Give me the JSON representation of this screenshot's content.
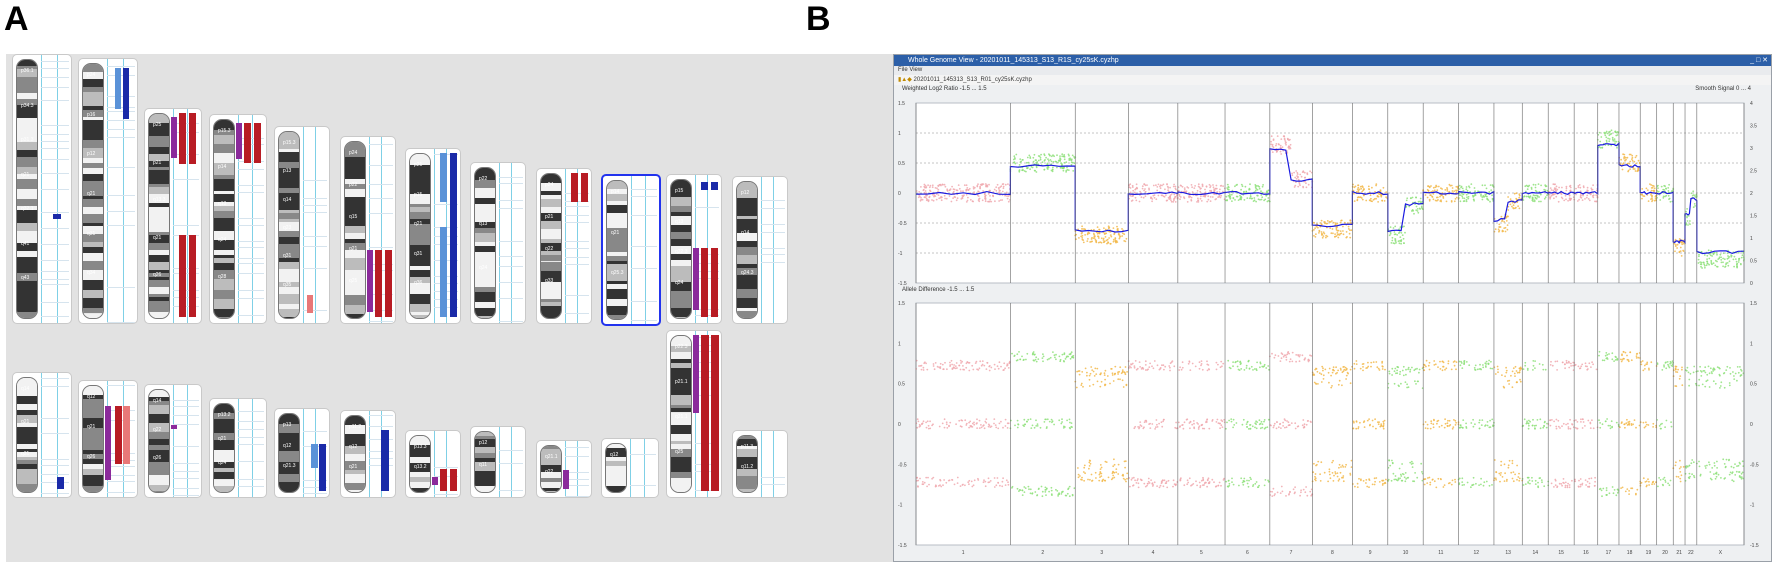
{
  "panel_a": {
    "letter": "A",
    "chromosomes_top": [
      {
        "bands": [
          "p36.1",
          "p34.3",
          "p31.3",
          "q21",
          "q32.1",
          "q41",
          "q43"
        ]
      },
      {
        "bands": [
          "p24",
          "p16",
          "p12",
          "q21",
          "q31",
          "q34"
        ]
      },
      {
        "bands": [
          "p25",
          "p21",
          "q13.3",
          "q21",
          "q26"
        ]
      },
      {
        "bands": [
          "p15.3",
          "p14",
          "q13",
          "q24",
          "q28"
        ]
      },
      {
        "bands": [
          "p15.3",
          "p13",
          "q14",
          "q23",
          "q31",
          "q35"
        ]
      },
      {
        "bands": [
          "p24",
          "p22",
          "q15",
          "q21",
          "q25"
        ]
      },
      {
        "bands": [
          "p21",
          "p15",
          "q21",
          "q31",
          "q36"
        ]
      },
      {
        "bands": [
          "p22",
          "q13",
          "q24"
        ]
      },
      {
        "bands": [
          "p24",
          "p21",
          "q22",
          "q33"
        ]
      },
      {
        "bands": [
          "p14",
          "q21",
          "q25.3"
        ]
      },
      {
        "bands": [
          "p15",
          "q13",
          "q22.3",
          "q24"
        ]
      },
      {
        "bands": [
          "p12",
          "q14",
          "q24.3"
        ]
      }
    ],
    "chromosomes_bottom": [
      {
        "bands": [
          "q14",
          "q21",
          "q31"
        ]
      },
      {
        "bands": [
          "q12",
          "q21",
          "q26"
        ]
      },
      {
        "bands": [
          "q14",
          "q22",
          "q26"
        ]
      },
      {
        "bands": [
          "p13.2",
          "q21",
          "q24"
        ]
      },
      {
        "bands": [
          "p13",
          "q12",
          "q21.3"
        ]
      },
      {
        "bands": [
          "p11.2",
          "q12",
          "q21"
        ]
      },
      {
        "bands": [
          "p13.3",
          "q13.2"
        ]
      },
      {
        "bands": [
          "p12",
          "q11"
        ]
      },
      {
        "bands": [
          "q21.1",
          "q22"
        ]
      },
      {
        "bands": [
          "q12"
        ]
      },
      {
        "bands": [
          "p22.3",
          "p21.1",
          "q21.1",
          "q25"
        ]
      },
      {
        "bands": [
          "p11.3",
          "q11.2"
        ]
      }
    ],
    "colors": {
      "gain": "#b81c24",
      "loss": "#1a2aa8",
      "loh": "#8b2a9b",
      "mosaic_gain": "#e87878",
      "mosaic_loss": "#5a92d8",
      "selected_border": "#2233ee",
      "guide_line": "#7fd0e6"
    }
  },
  "panel_b": {
    "letter": "B",
    "window_title": "Whole Genome View - 20201011_145313_S13_R1S_cy25sK.cyzhp",
    "window_buttons": "_ □ ✕",
    "menu": "File  View",
    "toolbar_text": "20201011_145313_S13_R01_cy25sK.cyzhp",
    "top_track": {
      "label": "Weighted Log2 Ratio  -1.5 ... 1.5",
      "right_label": "Smooth Signal  0 ... 4",
      "y_ticks_left": [
        "1.5",
        "1",
        "0.5",
        "0",
        "-0.5",
        "-1",
        "-1.5"
      ],
      "y_ticks_right": [
        "4",
        "3.5",
        "3",
        "2.5",
        "2",
        "1.5",
        "1",
        "0.5",
        "0"
      ]
    },
    "bottom_track": {
      "label": "Allele Difference  -1.5 ... 1.5",
      "y_ticks_left": [
        "1.5",
        "1",
        "0.5",
        "0",
        "-0.5",
        "-1",
        "-1.5"
      ],
      "y_ticks_right": [
        "1.5",
        "1",
        "0.5",
        "0",
        "-0.5",
        "-1",
        "-1.5"
      ]
    },
    "chromosome_axis": [
      "1",
      "2",
      "3",
      "4",
      "5",
      "6",
      "7",
      "8",
      "9",
      "10",
      "11",
      "12",
      "13",
      "14",
      "15",
      "16",
      "17",
      "18",
      "19",
      "20",
      "21",
      "22",
      "X"
    ],
    "colors": {
      "pink": "#f0a8ae",
      "green": "#8ee07a",
      "orange": "#f2b84a",
      "blue": "#1a1ae0",
      "background": "#eef0f2"
    }
  }
}
